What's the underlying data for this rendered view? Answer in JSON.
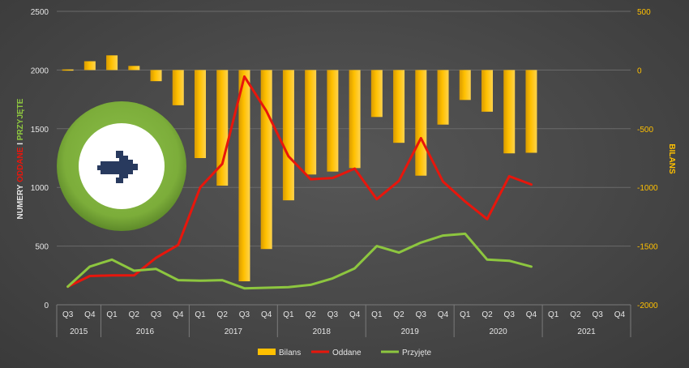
{
  "chart_data": {
    "type": "bar",
    "categories": [
      {
        "quarter": "Q3",
        "year": "2015"
      },
      {
        "quarter": "Q4",
        "year": "2015"
      },
      {
        "quarter": "Q1",
        "year": "2016"
      },
      {
        "quarter": "Q2",
        "year": "2016"
      },
      {
        "quarter": "Q3",
        "year": "2016"
      },
      {
        "quarter": "Q4",
        "year": "2016"
      },
      {
        "quarter": "Q1",
        "year": "2017"
      },
      {
        "quarter": "Q2",
        "year": "2017"
      },
      {
        "quarter": "Q3",
        "year": "2017"
      },
      {
        "quarter": "Q4",
        "year": "2017"
      },
      {
        "quarter": "Q1",
        "year": "2018"
      },
      {
        "quarter": "Q2",
        "year": "2018"
      },
      {
        "quarter": "Q3",
        "year": "2018"
      },
      {
        "quarter": "Q4",
        "year": "2018"
      },
      {
        "quarter": "Q1",
        "year": "2019"
      },
      {
        "quarter": "Q2",
        "year": "2019"
      },
      {
        "quarter": "Q3",
        "year": "2019"
      },
      {
        "quarter": "Q4",
        "year": "2019"
      },
      {
        "quarter": "Q1",
        "year": "2020"
      },
      {
        "quarter": "Q2",
        "year": "2020"
      },
      {
        "quarter": "Q3",
        "year": "2020"
      },
      {
        "quarter": "Q4",
        "year": "2020"
      },
      {
        "quarter": "Q1",
        "year": "2021"
      },
      {
        "quarter": "Q2",
        "year": "2021"
      },
      {
        "quarter": "Q3",
        "year": "2021"
      },
      {
        "quarter": "Q4",
        "year": "2021"
      }
    ],
    "years": [
      "2015",
      "2016",
      "2017",
      "2018",
      "2019",
      "2020",
      "2021"
    ],
    "series": [
      {
        "name": "Bilans",
        "kind": "bar",
        "axis": "right",
        "color": "#ffc000",
        "values": [
          5,
          75,
          125,
          35,
          -95,
          -300,
          -750,
          -985,
          -1800,
          -1525,
          -1110,
          -890,
          -865,
          -835,
          -400,
          -620,
          -900,
          -465,
          -255,
          -355,
          -710,
          -705,
          null,
          null,
          null,
          null
        ]
      },
      {
        "name": "Oddane",
        "kind": "line",
        "axis": "left",
        "color": "#e8160c",
        "values": [
          155,
          245,
          250,
          250,
          400,
          510,
          1000,
          1200,
          1945,
          1650,
          1265,
          1070,
          1080,
          1160,
          900,
          1055,
          1420,
          1050,
          880,
          730,
          1095,
          1025,
          null,
          null,
          null,
          null
        ]
      },
      {
        "name": "Przyjęte",
        "kind": "line",
        "axis": "left",
        "color": "#8dc63f",
        "values": [
          155,
          325,
          385,
          290,
          305,
          210,
          205,
          210,
          140,
          145,
          150,
          170,
          225,
          310,
          500,
          445,
          530,
          590,
          605,
          385,
          375,
          325,
          null,
          null,
          null,
          null
        ]
      }
    ],
    "y_left": {
      "ticks": [
        "0",
        "500",
        "1000",
        "1500",
        "2000",
        "2500"
      ],
      "ylim": [
        0,
        2500
      ],
      "title_parts": [
        "NUMERY ",
        "ODDANE",
        " I ",
        "PRZYJĘTE"
      ],
      "title_colors": [
        "#e6e6e6",
        "#e8160c",
        "#e6e6e6",
        "#8dc63f"
      ]
    },
    "y_right": {
      "ticks": [
        "-2000",
        "-1500",
        "-1000",
        "-500",
        "0",
        "500"
      ],
      "ylim": [
        -2000,
        500
      ],
      "title": "BILANS"
    },
    "grid": true,
    "legend_position": "bottom"
  },
  "logo": {
    "icon": "arrow-right-icon",
    "ring_color": "#7cad3a",
    "arrow_color": "#283a5e"
  }
}
